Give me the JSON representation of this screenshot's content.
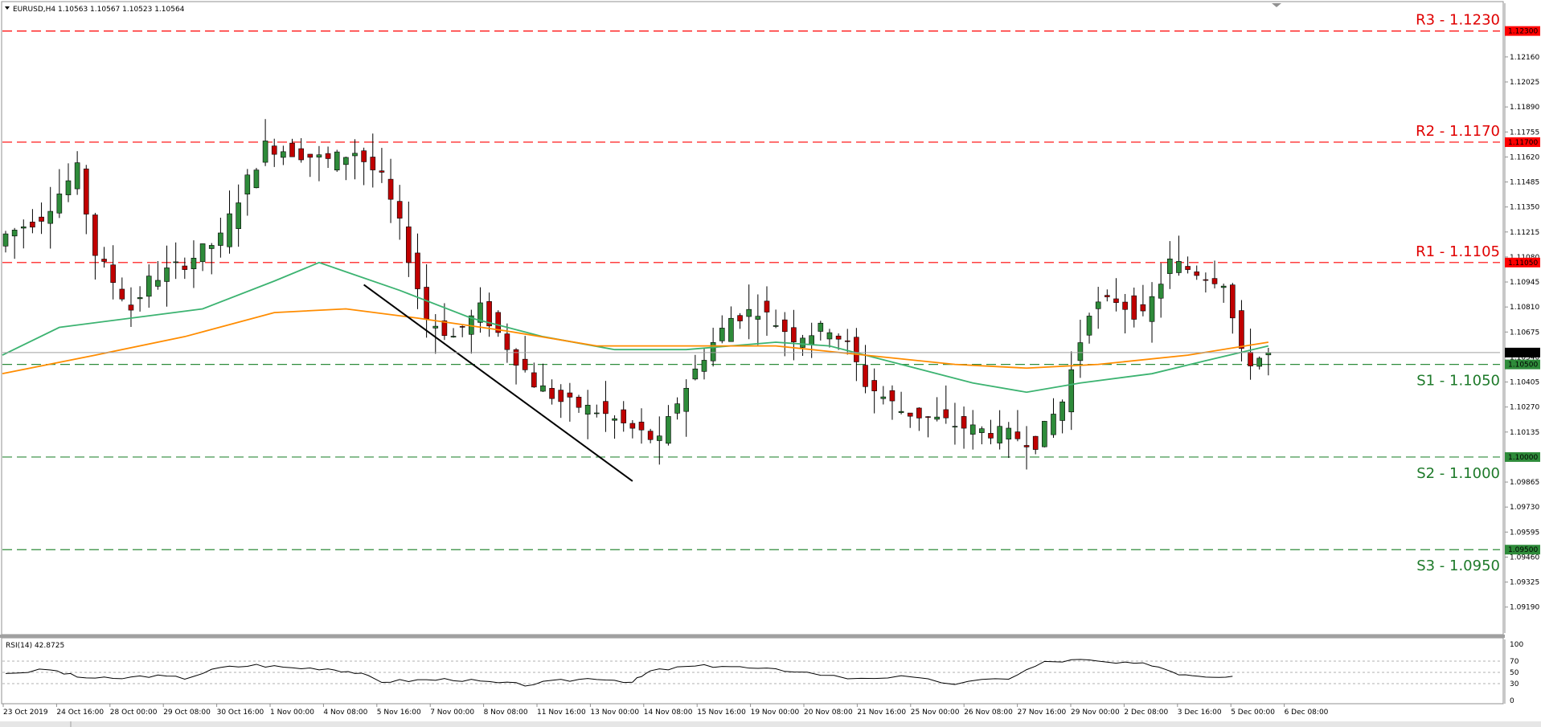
{
  "header": {
    "symbol_line": "EURUSD,H4  1.10563 1.10567 1.10523 1.10564"
  },
  "rsi_panel": {
    "label": "RSI(14) 42.8725"
  },
  "colors": {
    "bull_candle": "#2e8b3a",
    "bear_candle": "#c00000",
    "resistance": "#ff0000",
    "support": "#2e8b3a",
    "ma_fast": "#3cb371",
    "ma_slow": "#ff8c00",
    "trendline": "#000000",
    "rsi_line": "#000000"
  },
  "chart_data": {
    "type": "candlestick",
    "symbol": "EURUSD",
    "timeframe": "H4",
    "last_price": "1.10564",
    "y_axis": {
      "ylim": [
        1.0905,
        1.1245
      ],
      "tick_labels": [
        "1.12300",
        "1.12160",
        "1.12025",
        "1.11890",
        "1.11755",
        "1.11620",
        "1.11485",
        "1.11350",
        "1.11215",
        "1.11080",
        "1.10945",
        "1.10810",
        "1.10675",
        "1.10540",
        "1.10405",
        "1.10270",
        "1.10135",
        "1.09865",
        "1.09730",
        "1.09595",
        "1.09460",
        "1.09325",
        "1.09190"
      ]
    },
    "x_axis": {
      "tick_labels": [
        "23 Oct 2019",
        "24 Oct 16:00",
        "28 Oct 00:00",
        "29 Oct 08:00",
        "30 Oct 16:00",
        "1 Nov 00:00",
        "4 Nov 08:00",
        "5 Nov 16:00",
        "7 Nov 00:00",
        "8 Nov 08:00",
        "11 Nov 16:00",
        "13 Nov 00:00",
        "14 Nov 08:00",
        "15 Nov 16:00",
        "19 Nov 00:00",
        "20 Nov 08:00",
        "21 Nov 16:00",
        "25 Nov 00:00",
        "26 Nov 08:00",
        "27 Nov 16:00",
        "29 Nov 00:00",
        "2 Dec 08:00",
        "3 Dec 16:00",
        "5 Dec 00:00",
        "6 Dec 08:00"
      ]
    },
    "levels": [
      {
        "name": "R3",
        "value": 1.123,
        "label": "R3 - 1.1230",
        "tag": "1.12300",
        "kind": "resistance"
      },
      {
        "name": "R2",
        "value": 1.117,
        "label": "R2 - 1.1170",
        "tag": "1.11700",
        "kind": "resistance"
      },
      {
        "name": "R1",
        "value": 1.1105,
        "label": "R1 - 1.1105",
        "tag": "1.11050",
        "kind": "resistance"
      },
      {
        "name": "S1",
        "value": 1.105,
        "label": "S1 - 1.1050",
        "tag": "1.10500",
        "kind": "support"
      },
      {
        "name": "S2",
        "value": 1.1,
        "label": "S2 - 1.1000",
        "tag": "1.10000",
        "kind": "support"
      },
      {
        "name": "S3",
        "value": 1.095,
        "label": "S3 - 1.0950",
        "tag": "1.09500",
        "kind": "support"
      }
    ],
    "current_price": {
      "value": 1.10564,
      "tag": "1.10564"
    },
    "price_path": [
      [
        0,
        1.112
      ],
      [
        4,
        1.113
      ],
      [
        8,
        1.1155
      ],
      [
        10,
        1.111
      ],
      [
        14,
        1.108
      ],
      [
        16,
        1.1095
      ],
      [
        20,
        1.1105
      ],
      [
        24,
        1.1118
      ],
      [
        26,
        1.114
      ],
      [
        29,
        1.1168
      ],
      [
        32,
        1.1165
      ],
      [
        36,
        1.116
      ],
      [
        39,
        1.1165
      ],
      [
        42,
        1.115
      ],
      [
        44,
        1.1125
      ],
      [
        47,
        1.1075
      ],
      [
        50,
        1.1065
      ],
      [
        53,
        1.108
      ],
      [
        56,
        1.106
      ],
      [
        59,
        1.104
      ],
      [
        62,
        1.103
      ],
      [
        66,
        1.1025
      ],
      [
        70,
        1.1015
      ],
      [
        73,
        1.1008
      ],
      [
        75,
        1.103
      ],
      [
        78,
        1.1055
      ],
      [
        81,
        1.1075
      ],
      [
        84,
        1.108
      ],
      [
        88,
        1.1065
      ],
      [
        92,
        1.107
      ],
      [
        94,
        1.106
      ],
      [
        96,
        1.104
      ],
      [
        100,
        1.1025
      ],
      [
        104,
        1.102
      ],
      [
        108,
        1.1015
      ],
      [
        112,
        1.1012
      ],
      [
        115,
        1.1008
      ],
      [
        118,
        1.103
      ],
      [
        121,
        1.108
      ],
      [
        124,
        1.1085
      ],
      [
        127,
        1.1075
      ],
      [
        130,
        1.1105
      ],
      [
        133,
        1.11
      ],
      [
        136,
        1.1095
      ],
      [
        138,
        1.1055
      ],
      [
        139,
        1.1052
      ],
      [
        141,
        1.1055
      ]
    ],
    "moving_averages": [
      {
        "color": "ma_fast",
        "points": [
          [
            0,
            1.1055
          ],
          [
            6,
            1.107
          ],
          [
            14,
            1.1075
          ],
          [
            22,
            1.108
          ],
          [
            30,
            1.1095
          ],
          [
            35,
            1.1105
          ],
          [
            38,
            1.11
          ],
          [
            44,
            1.109
          ],
          [
            52,
            1.1075
          ],
          [
            60,
            1.1065
          ],
          [
            68,
            1.1058
          ],
          [
            76,
            1.1058
          ],
          [
            86,
            1.1062
          ],
          [
            92,
            1.106
          ],
          [
            100,
            1.105
          ],
          [
            108,
            1.104
          ],
          [
            114,
            1.1035
          ],
          [
            120,
            1.104
          ],
          [
            128,
            1.1045
          ],
          [
            134,
            1.1052
          ],
          [
            141,
            1.106
          ]
        ]
      },
      {
        "color": "ma_slow",
        "points": [
          [
            0,
            1.1045
          ],
          [
            10,
            1.1055
          ],
          [
            20,
            1.1065
          ],
          [
            30,
            1.1078
          ],
          [
            38,
            1.108
          ],
          [
            46,
            1.1075
          ],
          [
            56,
            1.1068
          ],
          [
            66,
            1.106
          ],
          [
            76,
            1.106
          ],
          [
            86,
            1.106
          ],
          [
            96,
            1.1055
          ],
          [
            106,
            1.105
          ],
          [
            114,
            1.1048
          ],
          [
            122,
            1.105
          ],
          [
            132,
            1.1055
          ],
          [
            141,
            1.1062
          ]
        ]
      }
    ],
    "trendline": [
      [
        40,
        1.1093
      ],
      [
        70,
        1.0987
      ]
    ],
    "rsi": {
      "ticks": [
        "100",
        "70",
        "50",
        "30",
        "0"
      ],
      "levels": [
        70,
        50,
        30
      ],
      "path": [
        [
          0,
          48
        ],
        [
          5,
          55
        ],
        [
          8,
          42
        ],
        [
          12,
          38
        ],
        [
          16,
          44
        ],
        [
          20,
          40
        ],
        [
          24,
          58
        ],
        [
          28,
          63
        ],
        [
          32,
          58
        ],
        [
          36,
          57
        ],
        [
          39,
          50
        ],
        [
          42,
          34
        ],
        [
          46,
          36
        ],
        [
          50,
          38
        ],
        [
          54,
          32
        ],
        [
          58,
          28
        ],
        [
          62,
          35
        ],
        [
          66,
          40
        ],
        [
          70,
          33
        ],
        [
          72,
          52
        ],
        [
          76,
          60
        ],
        [
          80,
          62
        ],
        [
          84,
          56
        ],
        [
          88,
          53
        ],
        [
          94,
          40
        ],
        [
          100,
          42
        ],
        [
          106,
          30
        ],
        [
          112,
          40
        ],
        [
          116,
          68
        ],
        [
          120,
          72
        ],
        [
          124,
          66
        ],
        [
          128,
          64
        ],
        [
          131,
          48
        ],
        [
          134,
          44
        ],
        [
          137,
          43
        ]
      ]
    }
  }
}
